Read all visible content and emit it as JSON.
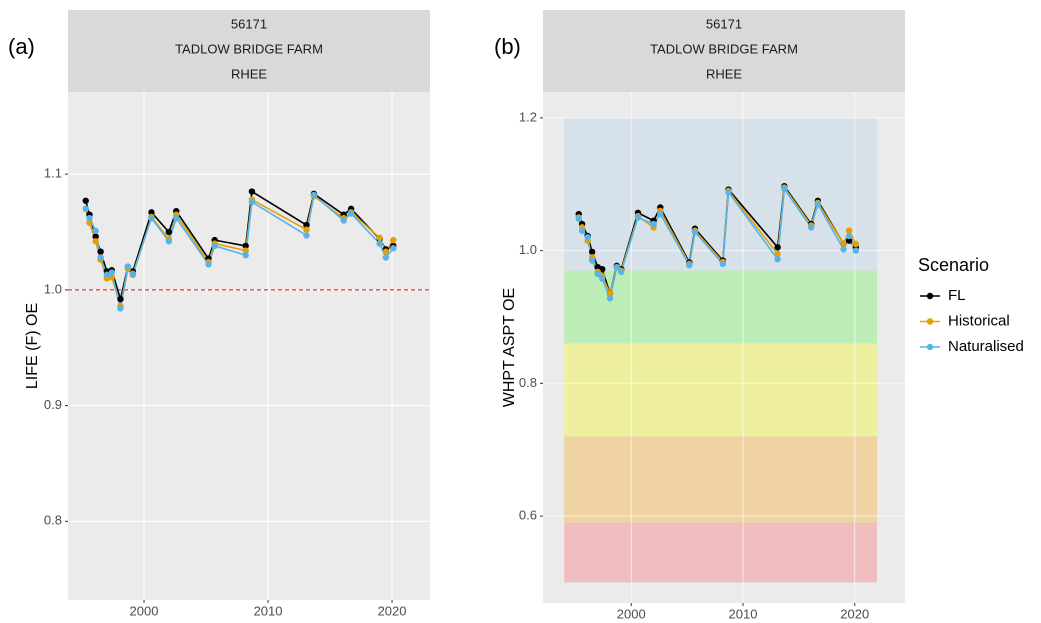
{
  "chart_data": [
    {
      "type": "line",
      "label": "(a)",
      "strip": [
        "56171",
        "TADLOW BRIDGE FARM",
        "RHEE"
      ],
      "y_label": "LIFE (F) OE",
      "x": [
        1995.3,
        1995.6,
        1996.1,
        1996.5,
        1997.0,
        1997.4,
        1998.1,
        1998.7,
        1999.1,
        2000.6,
        2002.0,
        2002.6,
        2005.2,
        2005.7,
        2008.2,
        2008.7,
        2013.1,
        2013.7,
        2016.1,
        2016.7,
        2019.0,
        2019.5,
        2020.1
      ],
      "series": [
        {
          "name": "FL",
          "color": "#000000",
          "values": [
            1.077,
            1.065,
            1.046,
            1.033,
            1.016,
            1.017,
            0.992,
            1.02,
            1.016,
            1.067,
            1.05,
            1.068,
            1.027,
            1.043,
            1.038,
            1.085,
            1.056,
            1.083,
            1.065,
            1.07,
            1.044,
            1.035,
            1.038
          ]
        },
        {
          "name": "Historical",
          "color": "#E69F00",
          "values": [
            1.07,
            1.058,
            1.042,
            1.026,
            1.01,
            1.011,
            0.986,
            1.018,
            1.013,
            1.063,
            1.044,
            1.065,
            1.024,
            1.04,
            1.034,
            1.078,
            1.052,
            1.081,
            1.062,
            1.067,
            1.045,
            1.033,
            1.043
          ]
        },
        {
          "name": "Naturalised",
          "color": "#56B4E9",
          "values": [
            1.07,
            1.062,
            1.051,
            1.028,
            1.013,
            1.015,
            0.984,
            1.02,
            1.014,
            1.062,
            1.042,
            1.062,
            1.022,
            1.038,
            1.03,
            1.076,
            1.047,
            1.082,
            1.06,
            1.066,
            1.04,
            1.028,
            1.036
          ]
        }
      ],
      "xlim": [
        1993.87,
        2023.06
      ],
      "xticks": [
        2000,
        2010,
        2020
      ],
      "ylim": [
        0.732,
        1.171
      ],
      "yticks": [
        0.8,
        0.9,
        {
          "value": 1,
          "label": "1.0"
        },
        1.1
      ],
      "hline": {
        "value": 1,
        "color": "#ff0000",
        "dashed": true
      },
      "grid": true
    },
    {
      "type": "line",
      "label": "(b)",
      "strip": [
        "56171",
        "TADLOW BRIDGE FARM",
        "RHEE"
      ],
      "y_label": "WHPT ASPT OE",
      "x": [
        1995.3,
        1995.6,
        1996.1,
        1996.5,
        1997.0,
        1997.4,
        1998.1,
        1998.7,
        1999.1,
        2000.6,
        2002.0,
        2002.6,
        2005.2,
        2005.7,
        2008.2,
        2008.7,
        2013.1,
        2013.7,
        2016.1,
        2016.7,
        2019.0,
        2019.5,
        2020.1
      ],
      "series": [
        {
          "name": "FL",
          "color": "#000000",
          "values": [
            1.055,
            1.04,
            1.022,
            0.998,
            0.975,
            0.972,
            0.935,
            0.977,
            0.972,
            1.057,
            1.045,
            1.065,
            0.982,
            1.033,
            0.985,
            1.092,
            1.005,
            1.097,
            1.04,
            1.075,
            1.01,
            1.015,
            1.005
          ]
        },
        {
          "name": "Historical",
          "color": "#E69F00",
          "values": [
            1.05,
            1.035,
            1.015,
            0.99,
            0.968,
            0.962,
            0.935,
            0.975,
            0.97,
            1.052,
            1.035,
            1.06,
            0.98,
            1.03,
            0.983,
            1.09,
            0.995,
            1.095,
            1.038,
            1.072,
            1.01,
            1.03,
            1.01
          ]
        },
        {
          "name": "Naturalised",
          "color": "#56B4E9",
          "values": [
            1.048,
            1.03,
            1.02,
            0.985,
            0.965,
            0.958,
            0.928,
            0.975,
            0.968,
            1.05,
            1.04,
            1.055,
            0.978,
            1.028,
            0.98,
            1.088,
            0.987,
            1.093,
            1.035,
            1.07,
            1.002,
            1.022,
            1.0
          ]
        }
      ],
      "xlim": [
        1992.1,
        2024.5
      ],
      "xticks": [
        2000,
        2010,
        2020
      ],
      "ylim": [
        0.469,
        1.239
      ],
      "yticks": [
        0.6,
        0.8,
        {
          "value": 1,
          "label": "1.0"
        },
        1.2
      ],
      "band_x": [
        1994,
        2022
      ],
      "bands": [
        {
          "from": 0.5,
          "to": 0.59,
          "color": "#efbdbd"
        },
        {
          "from": 0.59,
          "to": 0.72,
          "color": "#efd3a2"
        },
        {
          "from": 0.72,
          "to": 0.86,
          "color": "#eef0a0"
        },
        {
          "from": 0.86,
          "to": 0.97,
          "color": "#bdedb6"
        },
        {
          "from": 0.97,
          "to": 1.2,
          "color": "#d6e1ea"
        }
      ],
      "legend": "right",
      "legend_title": "Scenario",
      "grid": true
    }
  ]
}
